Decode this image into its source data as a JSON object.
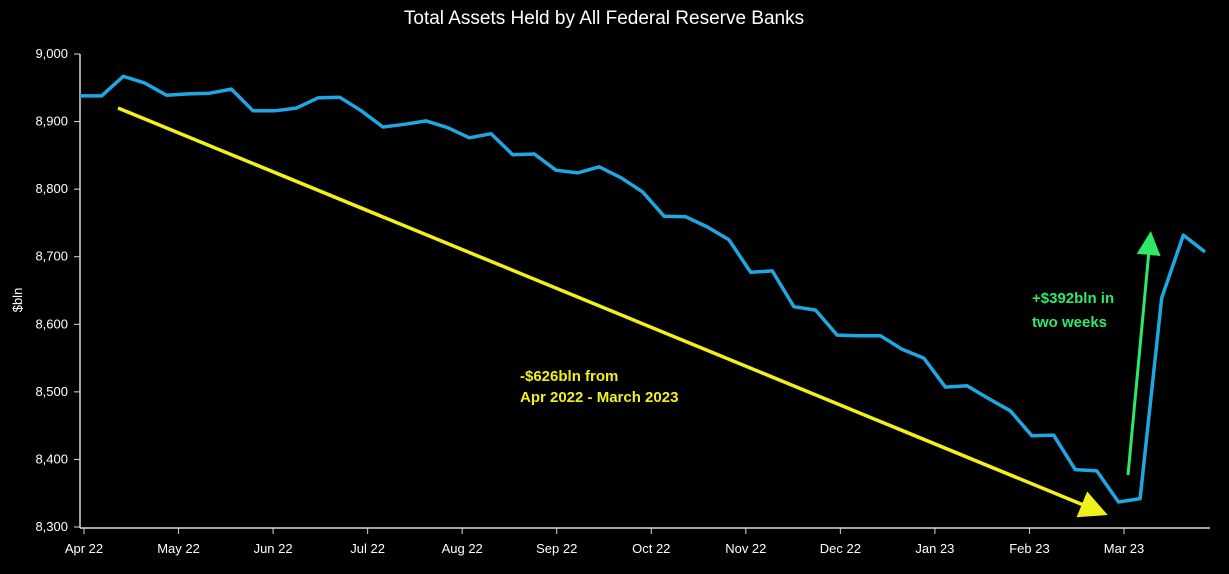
{
  "chart_data": {
    "type": "line",
    "title": "Total Assets Held by All Federal Reserve Banks",
    "xlabel": "",
    "ylabel": "$bln",
    "ylim": [
      8300,
      9000
    ],
    "yticks": [
      "8,300",
      "8,400",
      "8,500",
      "8,600",
      "8,700",
      "8,800",
      "8,900",
      "9,000"
    ],
    "ytick_values": [
      8300,
      8400,
      8500,
      8600,
      8700,
      8800,
      8900,
      9000
    ],
    "xticks": [
      "Apr 22",
      "May 22",
      "Jun 22",
      "Jul 22",
      "Aug 22",
      "Sep 22",
      "Oct 22",
      "Nov 22",
      "Dec 22",
      "Jan 23",
      "Feb 23",
      "Mar 23"
    ],
    "grid": false,
    "series": [
      {
        "name": "Total Assets",
        "color": "#1ea7e0",
        "frequency": "weekly",
        "values": [
          8938,
          8938,
          8967,
          8957,
          8939,
          8941,
          8942,
          8948,
          8916,
          8916,
          8920,
          8935,
          8936,
          8916,
          8892,
          8896,
          8901,
          8891,
          8876,
          8882,
          8851,
          8852,
          8828,
          8824,
          8833,
          8817,
          8796,
          8760,
          8759,
          8744,
          8725,
          8677,
          8679,
          8626,
          8621,
          8584,
          8583,
          8583,
          8563,
          8550,
          8507,
          8509,
          8490,
          8472,
          8435,
          8436,
          8385,
          8383,
          8337,
          8342,
          8639,
          8732,
          8707
        ]
      }
    ],
    "annotations": [
      {
        "text_lines": [
          "-$626bln from",
          "Apr 2022 - March 2023"
        ],
        "color": "#f2f01c",
        "arrow": "downward trend"
      },
      {
        "text_lines": [
          "+$392bln in",
          "two weeks"
        ],
        "color": "#2ee86a",
        "arrow": "upward"
      }
    ]
  }
}
